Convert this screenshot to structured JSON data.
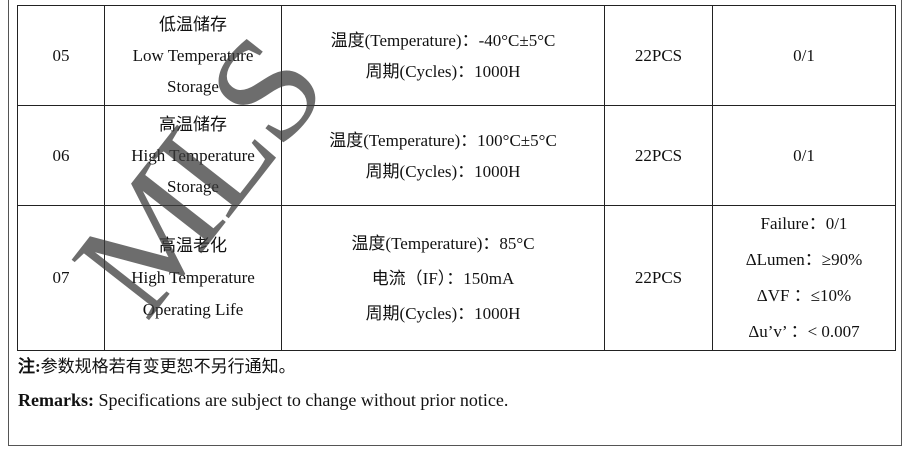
{
  "watermark": "MLS",
  "rows": [
    {
      "no": "05",
      "item_cn": "低温储存",
      "item_en1": "Low Temperature",
      "item_en2": "Storage",
      "cond": [
        "温度(Temperature)：-40°C±5°C",
        "周期(Cycles)：1000H"
      ],
      "qty": "22PCS",
      "result": [
        "0/1"
      ]
    },
    {
      "no": "06",
      "item_cn": "高温储存",
      "item_en1": "High Temperature",
      "item_en2": "Storage",
      "cond": [
        "温度(Temperature)：100°C±5°C",
        "周期(Cycles)：1000H"
      ],
      "qty": "22PCS",
      "result": [
        "0/1"
      ]
    },
    {
      "no": "07",
      "item_cn": "高温老化",
      "item_en1": "High Temperature",
      "item_en2": "Operating Life",
      "cond": [
        "温度(Temperature)：85°C",
        "电流（IF）：150mA",
        "周期(Cycles)：1000H"
      ],
      "qty": "22PCS",
      "result": [
        "Failure：0/1",
        "ΔLumen：≥90%",
        "ΔVF ：≤10%",
        "Δu’v’ ：< 0.007"
      ]
    }
  ],
  "note": {
    "label": "注:",
    "text": "参数规格若有变更恕不另行通知。"
  },
  "remarks": {
    "label": "Remarks:",
    "text": " Specifications are subject to change without prior notice."
  }
}
